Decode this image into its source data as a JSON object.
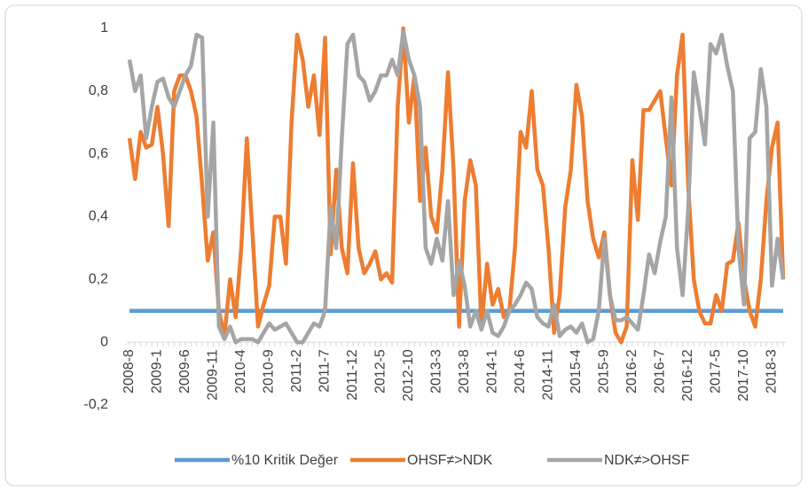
{
  "chart_data": {
    "type": "line",
    "categories": [
      "2008-8",
      null,
      null,
      null,
      null,
      "2009-1",
      null,
      null,
      null,
      null,
      "2009-6",
      null,
      null,
      null,
      null,
      "2009-11",
      null,
      null,
      null,
      null,
      "2010-4",
      null,
      null,
      null,
      null,
      "2010-9",
      null,
      null,
      null,
      null,
      "2011-2",
      null,
      null,
      null,
      null,
      "2011-7",
      null,
      null,
      null,
      null,
      "2011-12",
      null,
      null,
      null,
      null,
      "2012-5",
      null,
      null,
      null,
      null,
      "2012-10",
      null,
      null,
      null,
      null,
      "2013-3",
      null,
      null,
      null,
      null,
      "2013-8",
      null,
      null,
      null,
      null,
      "2014-1",
      null,
      null,
      null,
      null,
      "2014-6",
      null,
      null,
      null,
      null,
      "2014-11",
      null,
      null,
      null,
      null,
      "2015-4",
      null,
      null,
      null,
      null,
      "2015-9",
      null,
      null,
      null,
      null,
      "2016-2",
      null,
      null,
      null,
      null,
      "2016-7",
      null,
      null,
      null,
      null,
      "2016-12",
      null,
      null,
      null,
      null,
      "2017-5",
      null,
      null,
      null,
      null,
      "2017-10",
      null,
      null,
      null,
      null,
      "2018-3",
      null,
      null
    ],
    "series": [
      {
        "name": "%10 Kritik Değer",
        "color": "#5b9bd5",
        "values": [
          0.1,
          0.1,
          0.1,
          0.1,
          0.1,
          0.1,
          0.1,
          0.1,
          0.1,
          0.1,
          0.1,
          0.1,
          0.1,
          0.1,
          0.1,
          0.1,
          0.1,
          0.1,
          0.1,
          0.1,
          0.1,
          0.1,
          0.1,
          0.1,
          0.1,
          0.1,
          0.1,
          0.1,
          0.1,
          0.1,
          0.1,
          0.1,
          0.1,
          0.1,
          0.1,
          0.1,
          0.1,
          0.1,
          0.1,
          0.1,
          0.1,
          0.1,
          0.1,
          0.1,
          0.1,
          0.1,
          0.1,
          0.1,
          0.1,
          0.1,
          0.1,
          0.1,
          0.1,
          0.1,
          0.1,
          0.1,
          0.1,
          0.1,
          0.1,
          0.1,
          0.1,
          0.1,
          0.1,
          0.1,
          0.1,
          0.1,
          0.1,
          0.1,
          0.1,
          0.1,
          0.1,
          0.1,
          0.1,
          0.1,
          0.1,
          0.1,
          0.1,
          0.1,
          0.1,
          0.1,
          0.1,
          0.1,
          0.1,
          0.1,
          0.1,
          0.1,
          0.1,
          0.1,
          0.1,
          0.1,
          0.1,
          0.1,
          0.1,
          0.1,
          0.1,
          0.1,
          0.1,
          0.1,
          0.1,
          0.1,
          0.1,
          0.1,
          0.1,
          0.1,
          0.1,
          0.1,
          0.1,
          0.1,
          0.1,
          0.1,
          0.1,
          0.1,
          0.1,
          0.1,
          0.1,
          0.1,
          0.1,
          0.1
        ]
      },
      {
        "name": "OHSF≠>NDK",
        "color": "#ed7d31",
        "values": [
          0.65,
          0.52,
          0.67,
          0.62,
          0.63,
          0.75,
          0.6,
          0.37,
          0.8,
          0.85,
          0.85,
          0.8,
          0.72,
          0.5,
          0.26,
          0.35,
          0.1,
          0.02,
          0.2,
          0.08,
          0.3,
          0.65,
          0.35,
          0.05,
          0.12,
          0.18,
          0.4,
          0.4,
          0.25,
          0.7,
          0.98,
          0.9,
          0.75,
          0.85,
          0.66,
          0.97,
          0.28,
          0.55,
          0.3,
          0.22,
          0.57,
          0.3,
          0.22,
          0.25,
          0.29,
          0.2,
          0.22,
          0.19,
          0.75,
          1.0,
          0.7,
          0.85,
          0.45,
          0.62,
          0.4,
          0.35,
          0.55,
          0.86,
          0.55,
          0.05,
          0.45,
          0.58,
          0.5,
          0.05,
          0.25,
          0.12,
          0.17,
          0.08,
          0.1,
          0.3,
          0.67,
          0.62,
          0.8,
          0.55,
          0.5,
          0.3,
          0.03,
          0.15,
          0.43,
          0.55,
          0.82,
          0.72,
          0.45,
          0.33,
          0.27,
          0.35,
          0.15,
          0.03,
          0.0,
          0.05,
          0.58,
          0.39,
          0.74,
          0.74,
          0.77,
          0.8,
          0.65,
          0.5,
          0.85,
          0.98,
          0.5,
          0.2,
          0.1,
          0.06,
          0.06,
          0.15,
          0.1,
          0.25,
          0.26,
          0.38,
          0.2,
          0.1,
          0.05,
          0.2,
          0.45,
          0.62,
          0.7,
          0.2
        ]
      },
      {
        "name": "NDK≠>OHSF",
        "color": "#a5a5a5",
        "values": [
          0.9,
          0.8,
          0.85,
          0.65,
          0.75,
          0.83,
          0.84,
          0.78,
          0.75,
          0.8,
          0.85,
          0.88,
          0.98,
          0.97,
          0.4,
          0.7,
          0.05,
          0.01,
          0.05,
          0.0,
          0.01,
          0.01,
          0.01,
          0.0,
          0.03,
          0.06,
          0.04,
          0.05,
          0.06,
          0.03,
          0.0,
          0.0,
          0.03,
          0.06,
          0.05,
          0.1,
          0.43,
          0.3,
          0.65,
          0.95,
          0.98,
          0.85,
          0.83,
          0.77,
          0.8,
          0.85,
          0.85,
          0.9,
          0.85,
          0.99,
          0.9,
          0.85,
          0.75,
          0.3,
          0.25,
          0.33,
          0.26,
          0.45,
          0.15,
          0.26,
          0.18,
          0.05,
          0.1,
          0.04,
          0.1,
          0.03,
          0.02,
          0.05,
          0.1,
          0.12,
          0.15,
          0.19,
          0.17,
          0.08,
          0.06,
          0.05,
          0.12,
          0.02,
          0.04,
          0.05,
          0.03,
          0.06,
          0.0,
          0.01,
          0.1,
          0.33,
          0.15,
          0.07,
          0.07,
          0.08,
          0.06,
          0.04,
          0.15,
          0.28,
          0.22,
          0.32,
          0.4,
          0.78,
          0.3,
          0.15,
          0.42,
          0.86,
          0.75,
          0.63,
          0.95,
          0.92,
          0.98,
          0.88,
          0.8,
          0.3,
          0.12,
          0.65,
          0.67,
          0.87,
          0.75,
          0.18,
          0.33,
          0.2
        ]
      }
    ],
    "ylim": [
      -0.2,
      1
    ],
    "yticks": [
      {
        "value": -0.2,
        "label": "-0,2"
      },
      0,
      {
        "value": 0.2,
        "label": "0,2"
      },
      {
        "value": 0.4,
        "label": "0,4"
      },
      {
        "value": 0.6,
        "label": "0,6"
      },
      {
        "value": 0.8,
        "label": "0,8"
      },
      1
    ],
    "legend": "bottom"
  }
}
